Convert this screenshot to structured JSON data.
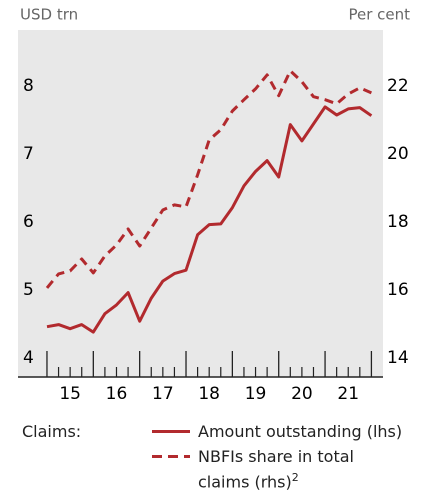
{
  "chart_data": {
    "type": "line",
    "y_label": "USD trn",
    "y2_label": "Per cent",
    "legend_title": "Claims:",
    "x": [
      15,
      15.25,
      15.5,
      15.75,
      16,
      16.25,
      16.5,
      16.75,
      17,
      17.25,
      17.5,
      17.75,
      18,
      18.25,
      18.5,
      18.75,
      19,
      19.25,
      19.5,
      19.75,
      20,
      20.25,
      20.5,
      20.75,
      21,
      21.25,
      21.5,
      21.75,
      22
    ],
    "xlim": [
      14.375,
      22.25
    ],
    "xticks": [
      {
        "value": 15.5,
        "label": "15"
      },
      {
        "value": 16.5,
        "label": "16"
      },
      {
        "value": 17.5,
        "label": "17"
      },
      {
        "value": 18.5,
        "label": "18"
      },
      {
        "value": 19.5,
        "label": "19"
      },
      {
        "value": 20.5,
        "label": "20"
      },
      {
        "value": 21.5,
        "label": "21"
      }
    ],
    "major_xticks": [
      15,
      16,
      17,
      18,
      19,
      20,
      21,
      22
    ],
    "minor_xticks": [
      15.25,
      15.5,
      15.75,
      16.25,
      16.5,
      16.75,
      17.25,
      17.5,
      17.75,
      18.25,
      18.5,
      18.75,
      19.25,
      19.5,
      19.75,
      20.25,
      20.5,
      20.75,
      21.25,
      21.5,
      21.75
    ],
    "ylim": [
      3.72,
      8.82
    ],
    "yticks": [
      4,
      5,
      6,
      7,
      8
    ],
    "y2lim": [
      13.44,
      23.64
    ],
    "y2ticks": [
      14,
      16,
      18,
      20,
      22
    ],
    "series": [
      {
        "name": "Amount outstanding (lhs)",
        "color": "#b22a2e",
        "dash": false,
        "values": [
          4.46,
          4.49,
          4.43,
          4.49,
          4.38,
          4.65,
          4.78,
          4.96,
          4.54,
          4.88,
          5.13,
          5.24,
          5.29,
          5.81,
          5.96,
          5.97,
          6.21,
          6.53,
          6.74,
          6.9,
          6.66,
          7.43,
          7.19,
          7.44,
          7.69,
          7.57,
          7.66,
          7.68,
          7.56
        ]
      },
      {
        "name": "NBFIs share in total claims (rhs)",
        "note": "2",
        "color": "#b22a2e",
        "dash": true,
        "axis": "y2",
        "values": [
          16.06,
          16.47,
          16.56,
          16.91,
          16.5,
          17.0,
          17.32,
          17.79,
          17.29,
          17.82,
          18.35,
          18.5,
          18.44,
          19.38,
          20.41,
          20.71,
          21.26,
          21.59,
          21.91,
          22.32,
          21.71,
          22.44,
          22.12,
          21.68,
          21.59,
          21.47,
          21.76,
          21.94,
          21.79
        ]
      }
    ]
  }
}
